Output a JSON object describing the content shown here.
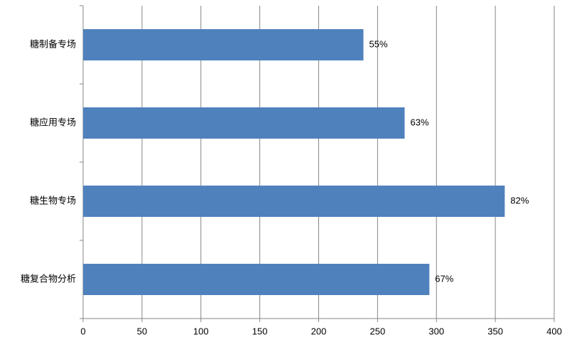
{
  "chart_data": {
    "type": "hbar",
    "categories": [
      "糖制备专场",
      "糖应用专场",
      "糖生物专场",
      "糖复合物分析"
    ],
    "values": [
      238,
      273,
      358,
      294
    ],
    "bar_labels": [
      "55%",
      "63%",
      "82%",
      "67%"
    ],
    "color": "#4f81bd",
    "xlim": [
      0,
      400
    ],
    "xticks": [
      0,
      50,
      100,
      150,
      200,
      250,
      300,
      350,
      400
    ],
    "grid": true
  }
}
